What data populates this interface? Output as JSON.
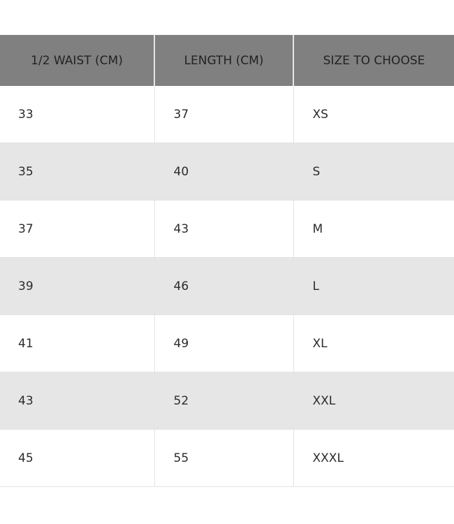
{
  "table": {
    "headers": [
      "1/2 WAIST (CM)",
      "LENGTH (CM)",
      "SIZE TO CHOOSE"
    ],
    "rows": [
      [
        "33",
        "37",
        "XS"
      ],
      [
        "35",
        "40",
        "S"
      ],
      [
        "37",
        "43",
        "M"
      ],
      [
        "39",
        "46",
        "L"
      ],
      [
        "41",
        "49",
        "XL"
      ],
      [
        "43",
        "52",
        "XXL"
      ],
      [
        "45",
        "55",
        "XXXL"
      ]
    ],
    "header_bg": "#808080",
    "stripe_bg": "#e6e6e6"
  }
}
